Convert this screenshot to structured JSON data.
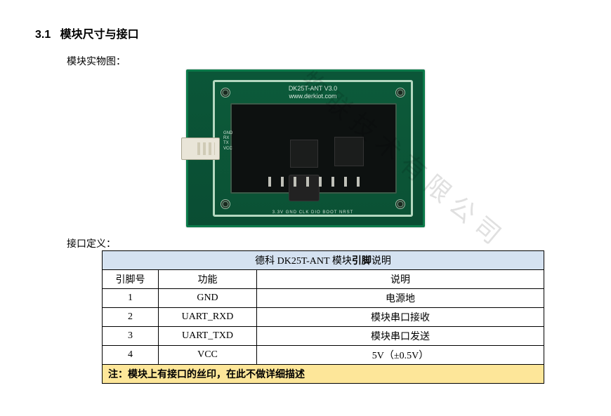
{
  "section": {
    "number": "3.1",
    "title": "模块尺寸与接口"
  },
  "figure_caption": "模块实物图：",
  "interface_caption": "接口定义：",
  "pcb": {
    "silk_line1": "DK25T-ANT  V3.0",
    "silk_line2": "www.derkiot.com",
    "left_pins": "GND\nRX\nTX\nVCC",
    "bottom_pins": "3.3V  GND  CLK  DIO  BOOT  NRST"
  },
  "table": {
    "title_prefix": "德科 DK25T-ANT 模块",
    "title_bold": "引脚",
    "title_suffix": "说明",
    "headers": {
      "pinno": "引脚号",
      "func": "功能",
      "desc": "说明"
    },
    "rows": [
      {
        "pinno": "1",
        "func": "GND",
        "desc": "电源地"
      },
      {
        "pinno": "2",
        "func": "UART_RXD",
        "desc": "模块串口接收"
      },
      {
        "pinno": "3",
        "func": "UART_TXD",
        "desc": "模块串口发送"
      },
      {
        "pinno": "4",
        "func": "VCC",
        "desc": "5V（±0.5V）"
      }
    ],
    "note": "注：模块上有接口的丝印，在此不做详细描述"
  },
  "watermark": "物联技术有限公司",
  "colors": {
    "table_title_bg": "#d5e2f1",
    "note_bg": "#fde699",
    "pcb_green": "#0b5638",
    "border": "#000000"
  }
}
